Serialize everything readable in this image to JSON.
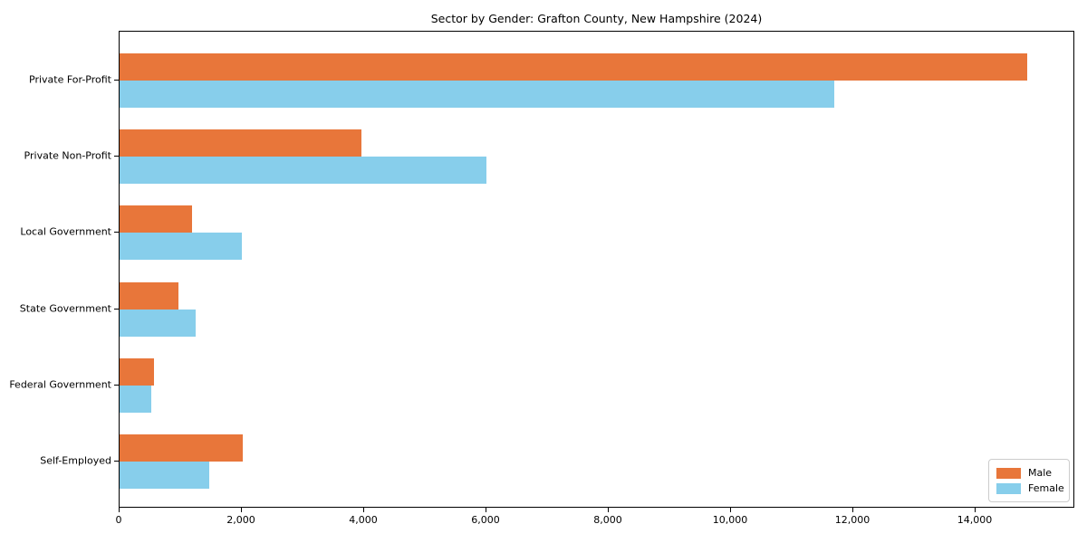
{
  "chart_data": {
    "type": "bar",
    "orientation": "horizontal",
    "title": "Sector by Gender: Grafton County, New Hampshire (2024)",
    "categories": [
      "Private For-Profit",
      "Private Non-Profit",
      "Local Government",
      "State Government",
      "Federal Government",
      "Self-Employed"
    ],
    "series": [
      {
        "name": "Male",
        "color": "#e8763a",
        "values": [
          14850,
          3950,
          1190,
          960,
          560,
          2010
        ]
      },
      {
        "name": "Female",
        "color": "#87ceeb",
        "values": [
          11690,
          6000,
          2000,
          1240,
          520,
          1470
        ]
      }
    ],
    "xlabel": "",
    "ylabel": "",
    "xlim": [
      0,
      15600
    ],
    "x_ticks": [
      0,
      2000,
      4000,
      6000,
      8000,
      10000,
      12000,
      14000
    ],
    "x_tick_labels": [
      "0",
      "2,000",
      "4,000",
      "6,000",
      "8,000",
      "10,000",
      "12,000",
      "14,000"
    ],
    "grid": false,
    "legend": {
      "position": "lower right"
    }
  }
}
